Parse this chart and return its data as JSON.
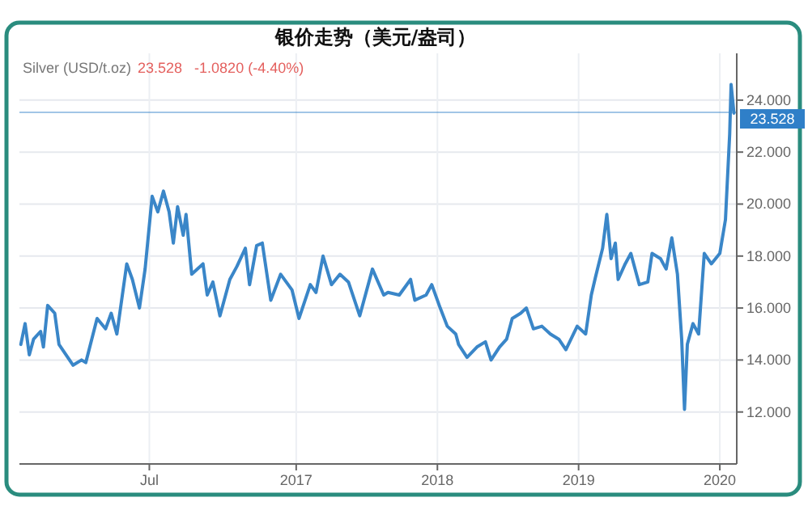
{
  "chart_data": {
    "type": "line",
    "title": "银价走势（美元/盎司）",
    "subtitle": "Silver (USD/t.oz)",
    "annotations": [
      "23.528   -1.0820 (-4.40%)"
    ],
    "x": [
      2015.05,
      2015.08,
      2015.11,
      2015.14,
      2015.19,
      2015.21,
      2015.24,
      2015.29,
      2015.32,
      2015.42,
      2015.48,
      2015.51,
      2015.59,
      2015.65,
      2015.69,
      2015.73,
      2015.8,
      2015.84,
      2015.89,
      2015.93,
      2015.98,
      2016.02,
      2016.06,
      2016.1,
      2016.13,
      2016.16,
      2016.2,
      2016.22,
      2016.26,
      2016.34,
      2016.37,
      2016.41,
      2016.46,
      2016.53,
      2016.58,
      2016.64,
      2016.67,
      2016.72,
      2016.76,
      2016.82,
      2016.89,
      2016.97,
      2017.02,
      2017.1,
      2017.14,
      2017.19,
      2017.25,
      2017.31,
      2017.37,
      2017.45,
      2017.54,
      2017.62,
      2017.65,
      2017.73,
      2017.81,
      2017.84,
      2017.92,
      2017.96,
      2018.02,
      2018.07,
      2018.13,
      2018.15,
      2018.21,
      2018.28,
      2018.34,
      2018.38,
      2018.44,
      2018.49,
      2018.53,
      2018.59,
      2018.63,
      2018.68,
      2018.74,
      2018.8,
      2018.86,
      2018.91,
      2018.99,
      2019.05,
      2019.09,
      2019.12,
      2019.17,
      2019.2,
      2019.23,
      2019.26,
      2019.28,
      2019.33,
      2019.37,
      2019.43,
      2019.49,
      2019.52,
      2019.58,
      2019.62,
      2019.66,
      2019.7,
      2019.73,
      2019.75,
      2019.77,
      2019.81,
      2019.85,
      2019.89,
      2019.94,
      2020.0,
      2020.04,
      2020.07,
      2020.08,
      2020.1
    ],
    "values": [
      14.6,
      15.4,
      14.2,
      14.8,
      15.1,
      14.5,
      16.1,
      15.8,
      14.6,
      13.8,
      14.0,
      13.9,
      15.6,
      15.2,
      15.8,
      15.0,
      17.7,
      17.1,
      16.0,
      17.5,
      20.3,
      19.7,
      20.5,
      19.7,
      18.5,
      19.9,
      18.8,
      19.6,
      17.3,
      17.7,
      16.5,
      17.0,
      15.7,
      17.1,
      17.6,
      18.3,
      16.9,
      18.4,
      18.5,
      16.3,
      17.3,
      16.7,
      15.6,
      16.9,
      16.6,
      18.0,
      16.9,
      17.3,
      17.0,
      15.7,
      17.5,
      16.5,
      16.6,
      16.5,
      17.1,
      16.3,
      16.5,
      16.9,
      16.0,
      15.3,
      15.0,
      14.6,
      14.1,
      14.5,
      14.7,
      14.0,
      14.5,
      14.8,
      15.6,
      15.8,
      16.0,
      15.2,
      15.3,
      15.0,
      14.8,
      14.4,
      15.3,
      15.0,
      16.5,
      17.2,
      18.3,
      19.6,
      17.9,
      18.5,
      17.1,
      17.7,
      18.1,
      16.9,
      17.0,
      18.1,
      17.9,
      17.5,
      18.7,
      17.3,
      14.8,
      12.1,
      14.6,
      15.4,
      15.0,
      18.1,
      17.7,
      18.1,
      19.4,
      22.7,
      24.6,
      23.5
    ],
    "color": "#3a86c8",
    "xlim": [
      2015.04,
      2020.12
    ],
    "ylim": [
      10,
      25.8
    ],
    "xticks": [
      {
        "value": 2015.96,
        "label": "Jul"
      },
      2017,
      2018,
      2019,
      2020
    ],
    "yticks": [
      {
        "value": 12,
        "label": "12.000"
      },
      {
        "value": 14,
        "label": "14.000"
      },
      {
        "value": 16,
        "label": "16.000"
      },
      {
        "value": 18,
        "label": "18.000"
      },
      {
        "value": 20,
        "label": "20.000"
      },
      {
        "value": 22,
        "label": "22.000"
      },
      {
        "value": 24,
        "label": "24.000"
      }
    ],
    "ref_lines": [
      {
        "axis": "y",
        "value": 23.528,
        "label": "23.528",
        "color": "#2f7fc8"
      }
    ],
    "grid": true
  }
}
